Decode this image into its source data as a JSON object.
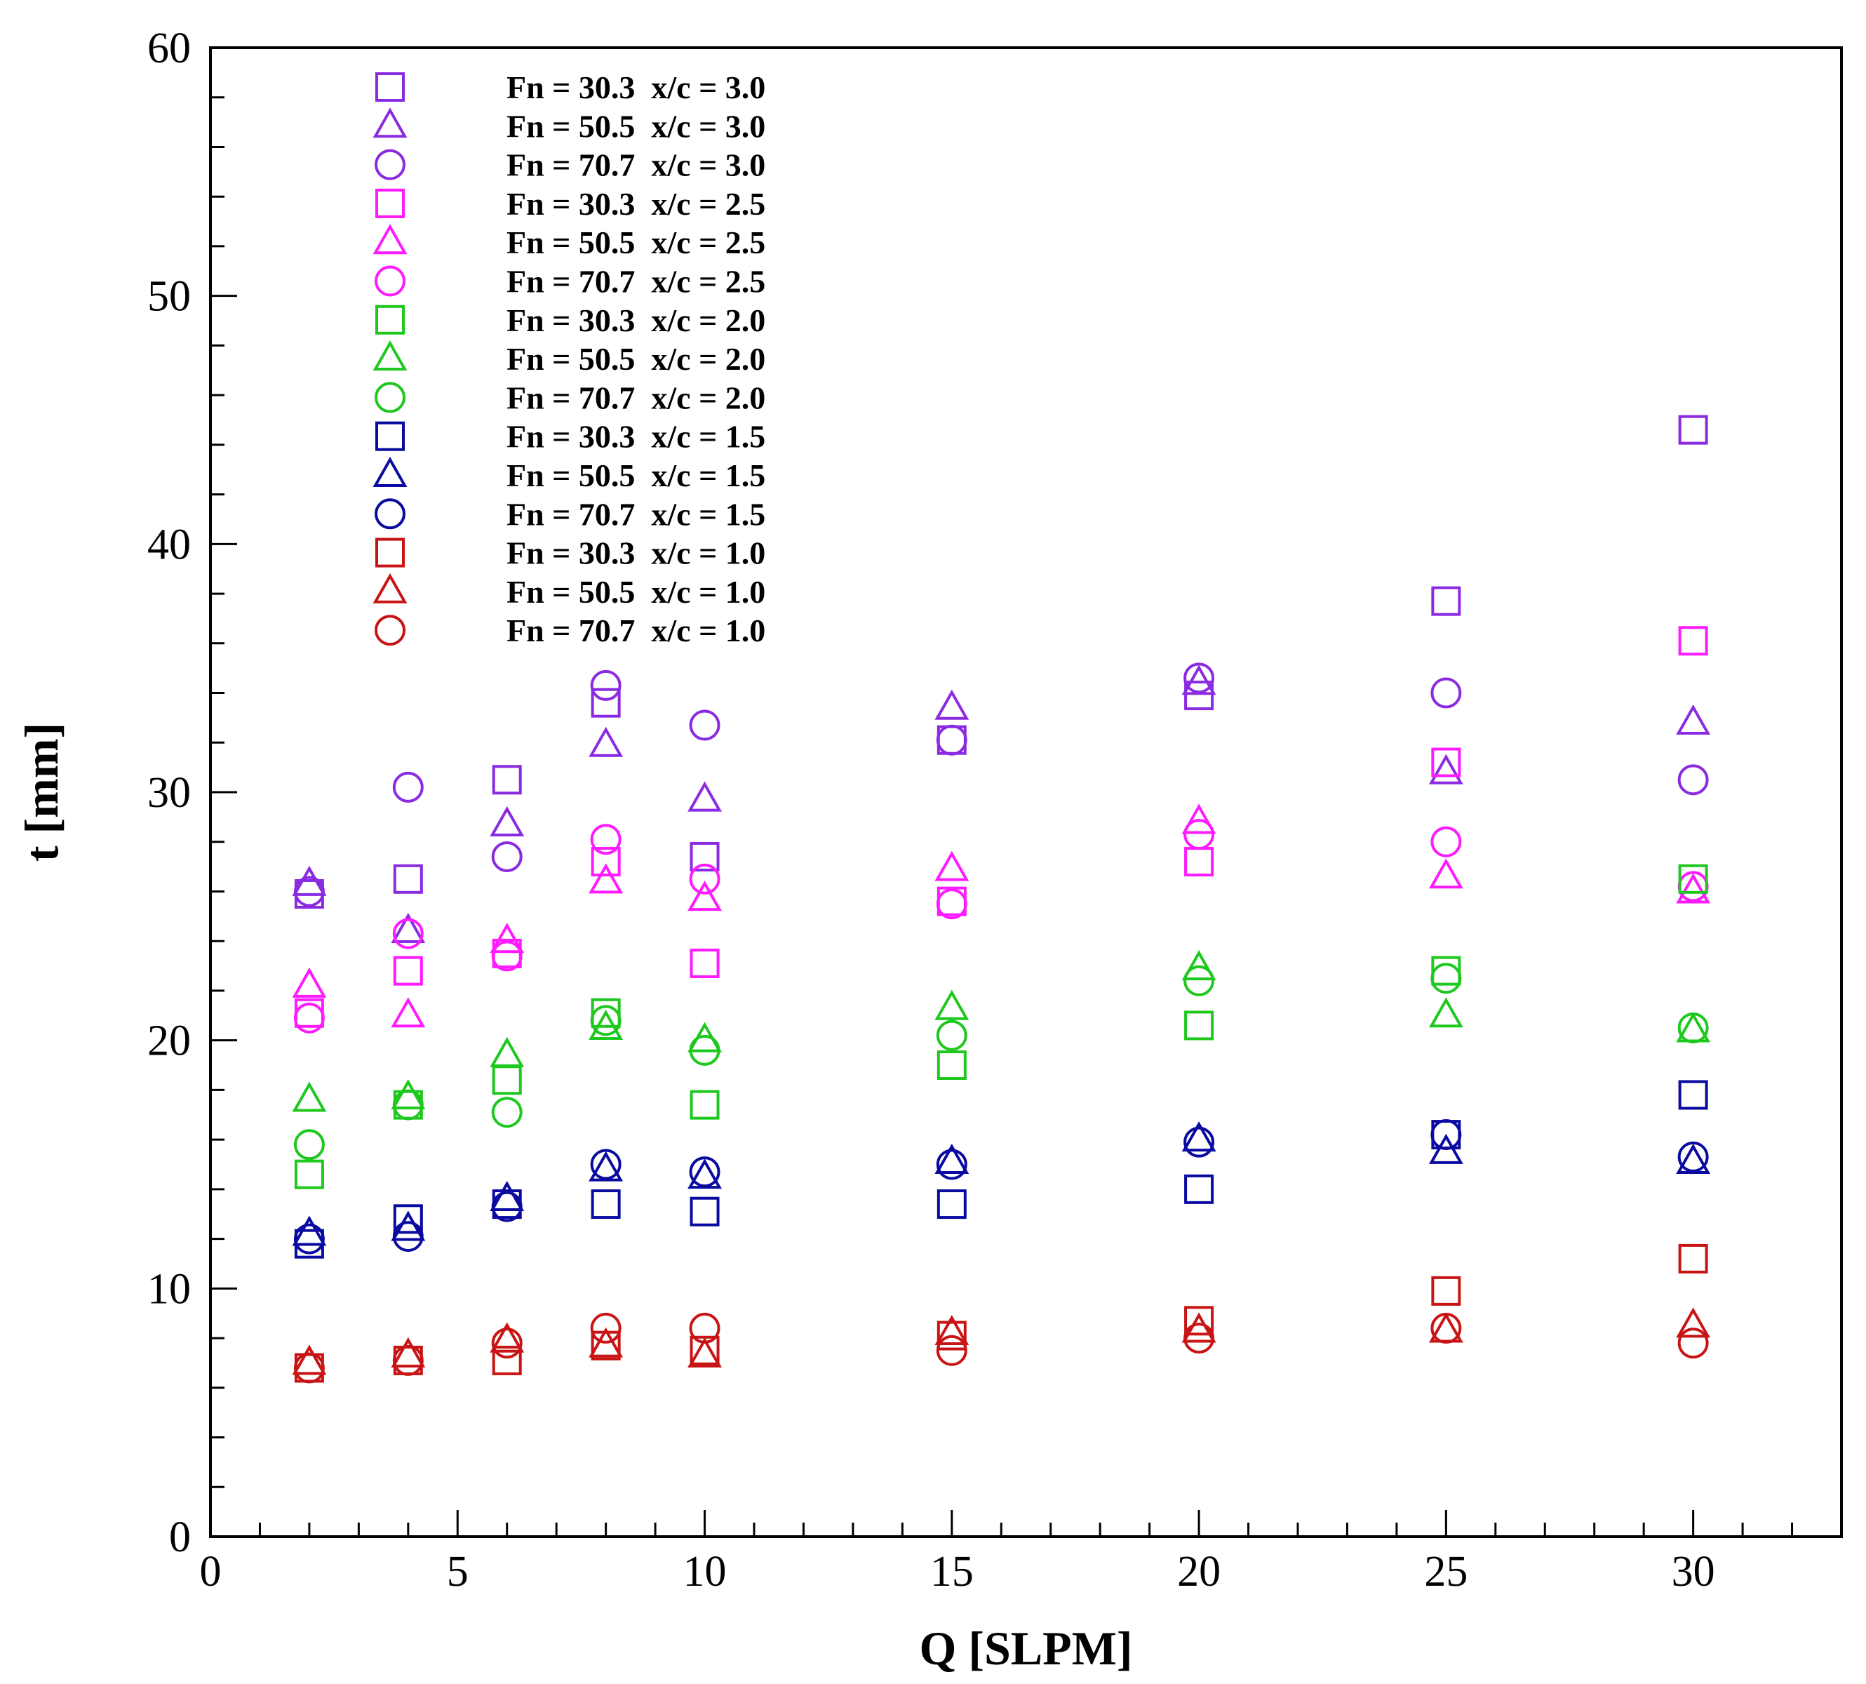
{
  "chart_data": {
    "type": "scatter",
    "title": "",
    "xlabel": "Q [SLPM]",
    "ylabel": "t [mm]",
    "xlim": [
      0,
      33
    ],
    "ylim": [
      0,
      60
    ],
    "x_major_ticks": [
      0,
      5,
      10,
      15,
      20,
      25,
      30
    ],
    "y_major_ticks": [
      0,
      10,
      20,
      30,
      40,
      50,
      60
    ],
    "grid": false,
    "legend_position": "top-left",
    "x": [
      2,
      4,
      6,
      8,
      10,
      15,
      20,
      25,
      30
    ],
    "series": [
      {
        "name": "Fn = 30.3  x/c = 3.0",
        "marker": "square",
        "color": "#8a2be2",
        "values": [
          25.9,
          26.5,
          30.5,
          33.6,
          27.4,
          32.1,
          33.9,
          37.7,
          44.6
        ]
      },
      {
        "name": "Fn = 50.5  x/c = 3.0",
        "marker": "triangle",
        "color": "#8a2be2",
        "values": [
          26.3,
          24.4,
          28.7,
          31.9,
          29.7,
          33.4,
          34.4,
          30.8,
          32.8
        ]
      },
      {
        "name": "Fn = 70.7  x/c = 3.0",
        "marker": "circle",
        "color": "#8a2be2",
        "values": [
          26.0,
          30.2,
          27.4,
          34.3,
          32.7,
          32.1,
          34.6,
          34.0,
          30.5
        ]
      },
      {
        "name": "Fn = 30.3  x/c = 2.5",
        "marker": "square",
        "color": "#ff1aff",
        "values": [
          21.1,
          22.8,
          23.5,
          27.2,
          23.1,
          25.6,
          27.2,
          31.2,
          36.1
        ]
      },
      {
        "name": "Fn = 50.5  x/c = 2.5",
        "marker": "triangle",
        "color": "#ff1aff",
        "values": [
          22.2,
          21.0,
          24.0,
          26.4,
          25.7,
          26.9,
          28.8,
          26.6,
          26.0
        ]
      },
      {
        "name": "Fn = 70.7  x/c = 2.5",
        "marker": "circle",
        "color": "#ff1aff",
        "values": [
          20.9,
          24.3,
          23.4,
          28.1,
          26.5,
          25.5,
          28.3,
          28.0,
          26.2
        ]
      },
      {
        "name": "Fn = 30.3  x/c = 2.0",
        "marker": "square",
        "color": "#1ec81e",
        "values": [
          14.6,
          17.4,
          18.4,
          21.1,
          17.4,
          19.0,
          20.6,
          22.8,
          26.5
        ]
      },
      {
        "name": "Fn = 50.5  x/c = 2.0",
        "marker": "triangle",
        "color": "#1ec81e",
        "values": [
          17.6,
          17.7,
          19.4,
          20.5,
          20.0,
          21.3,
          22.9,
          21.0,
          20.4
        ]
      },
      {
        "name": "Fn = 70.7  x/c = 2.0",
        "marker": "circle",
        "color": "#1ec81e",
        "values": [
          15.8,
          17.4,
          17.1,
          20.8,
          19.6,
          20.2,
          22.4,
          22.5,
          20.5
        ]
      },
      {
        "name": "Fn = 30.3  x/c = 1.5",
        "marker": "square",
        "color": "#0a0aa0",
        "values": [
          11.8,
          12.8,
          13.4,
          13.4,
          13.1,
          13.4,
          14.0,
          16.2,
          17.8
        ]
      },
      {
        "name": "Fn = 50.5  x/c = 1.5",
        "marker": "triangle",
        "color": "#0a0aa0",
        "values": [
          12.2,
          12.4,
          13.6,
          14.8,
          14.5,
          15.1,
          16.0,
          15.5,
          15.1
        ]
      },
      {
        "name": "Fn = 70.7  x/c = 1.5",
        "marker": "circle",
        "color": "#0a0aa0",
        "values": [
          12.0,
          12.1,
          13.3,
          15.0,
          14.7,
          15.0,
          15.9,
          16.2,
          15.3
        ]
      },
      {
        "name": "Fn = 30.3  x/c = 1.0",
        "marker": "square",
        "color": "#c81414",
        "values": [
          6.8,
          7.1,
          7.1,
          7.7,
          7.5,
          8.1,
          8.7,
          9.9,
          11.2
        ]
      },
      {
        "name": "Fn = 50.5  x/c = 1.0",
        "marker": "triangle",
        "color": "#c81414",
        "values": [
          7.0,
          7.3,
          7.9,
          7.7,
          7.3,
          8.2,
          8.3,
          8.3,
          8.5
        ]
      },
      {
        "name": "Fn = 70.7  x/c = 1.0",
        "marker": "circle",
        "color": "#c81414",
        "values": [
          6.8,
          7.1,
          7.8,
          8.4,
          8.4,
          7.5,
          8.0,
          8.4,
          7.8
        ]
      }
    ]
  }
}
